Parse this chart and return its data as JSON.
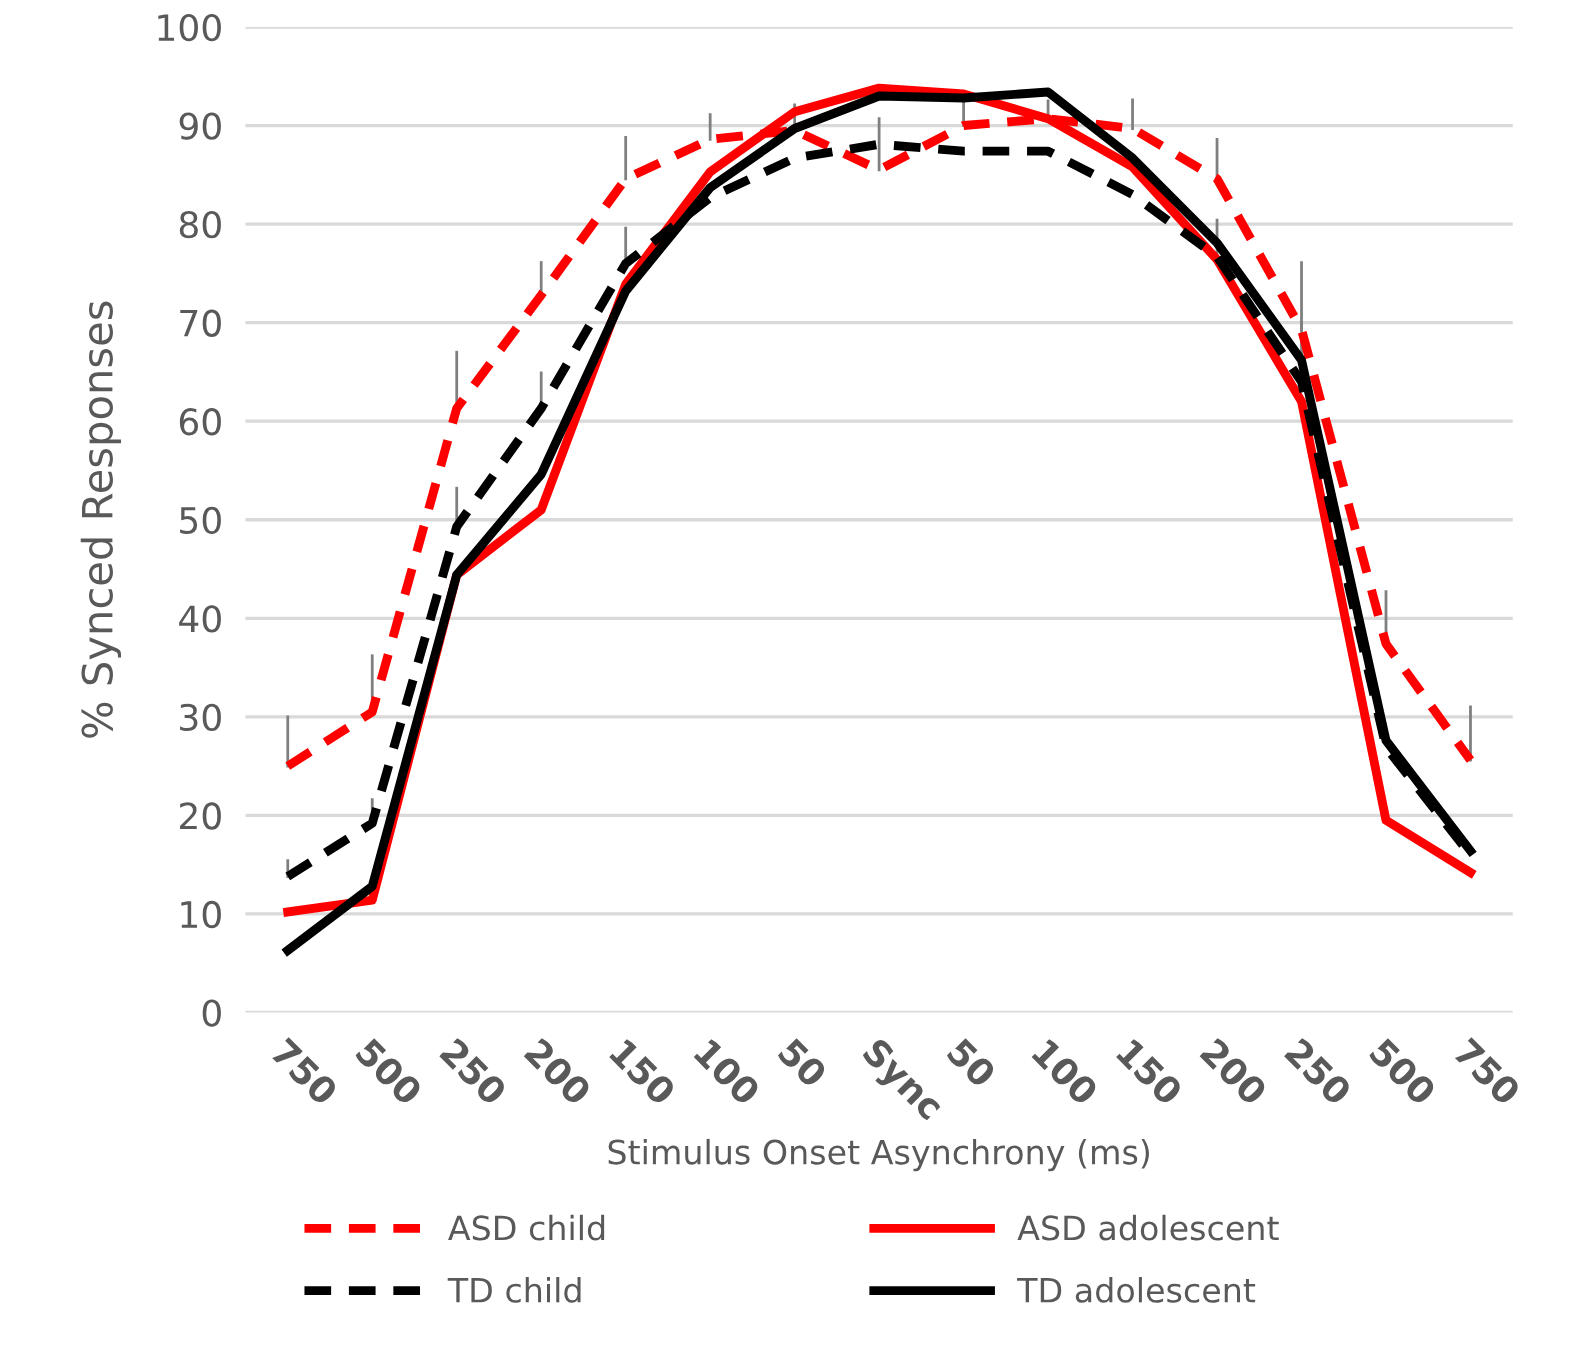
{
  "chart_data": {
    "type": "line",
    "xlabel": "Stimulus Onset Asynchrony (ms)",
    "ylabel": "% Synced Responses",
    "categories": [
      "750",
      "500",
      "250",
      "200",
      "150",
      "100",
      "50",
      "Sync",
      "50",
      "100",
      "150",
      "200",
      "250",
      "500",
      "750"
    ],
    "ylim": [
      0,
      100
    ],
    "yticks": [
      0,
      10,
      20,
      30,
      40,
      50,
      60,
      70,
      80,
      90,
      100
    ],
    "grid": "y",
    "legend": "bottom",
    "marker": "none",
    "series": [
      {
        "name": "ASD child",
        "color": "#ff0000",
        "line_style": "dashed",
        "values": [
          25.0,
          30.5,
          61.3,
          72.8,
          84.6,
          88.6,
          89.5,
          85.5,
          90.0,
          90.7,
          89.7,
          84.6,
          69.3,
          37.4,
          25.6
        ],
        "errors": [
          [
            25.0,
            30.0
          ],
          [
            30.5,
            36.2
          ],
          [
            61.3,
            67.0
          ],
          [
            72.8,
            76.1
          ],
          [
            84.6,
            88.8
          ],
          [
            88.6,
            91.1
          ],
          [
            89.5,
            92.1
          ],
          [
            85.5,
            90.7
          ],
          [
            90.0,
            92.5
          ],
          [
            90.7,
            92.5
          ],
          [
            89.7,
            92.6
          ],
          [
            84.6,
            88.6
          ],
          [
            69.3,
            76.1
          ],
          [
            37.4,
            42.7
          ],
          [
            25.6,
            31.0
          ]
        ]
      },
      {
        "name": "ASD adolescent",
        "color": "#ff0000",
        "line_style": "solid",
        "values": [
          10.2,
          11.4,
          44.4,
          51.0,
          73.9,
          85.3,
          91.4,
          93.8,
          93.2,
          90.7,
          85.8,
          76.4,
          62.0,
          19.5,
          14.2
        ]
      },
      {
        "name": "TD child",
        "color": "#000000",
        "line_style": "dashed",
        "values": [
          13.8,
          19.2,
          49.3,
          61.3,
          76.0,
          82.7,
          86.7,
          88.1,
          87.4,
          87.4,
          83.0,
          76.7,
          64.0,
          26.9,
          16.0
        ],
        "errors": [
          [
            13.8,
            15.4
          ],
          [
            19.2,
            21.6
          ],
          [
            49.3,
            53.2
          ],
          [
            61.3,
            64.9
          ],
          [
            76.0,
            79.6
          ],
          null,
          null,
          null,
          null,
          null,
          null,
          [
            76.7,
            80.4
          ],
          [
            64.0,
            70.0
          ],
          null,
          null
        ]
      },
      {
        "name": "TD adolescent",
        "color": "#000000",
        "line_style": "solid",
        "values": [
          6.3,
          12.8,
          44.4,
          54.6,
          73.2,
          83.7,
          89.7,
          93.0,
          92.8,
          93.4,
          86.7,
          78.1,
          66.2,
          27.6,
          16.4
        ]
      }
    ]
  }
}
